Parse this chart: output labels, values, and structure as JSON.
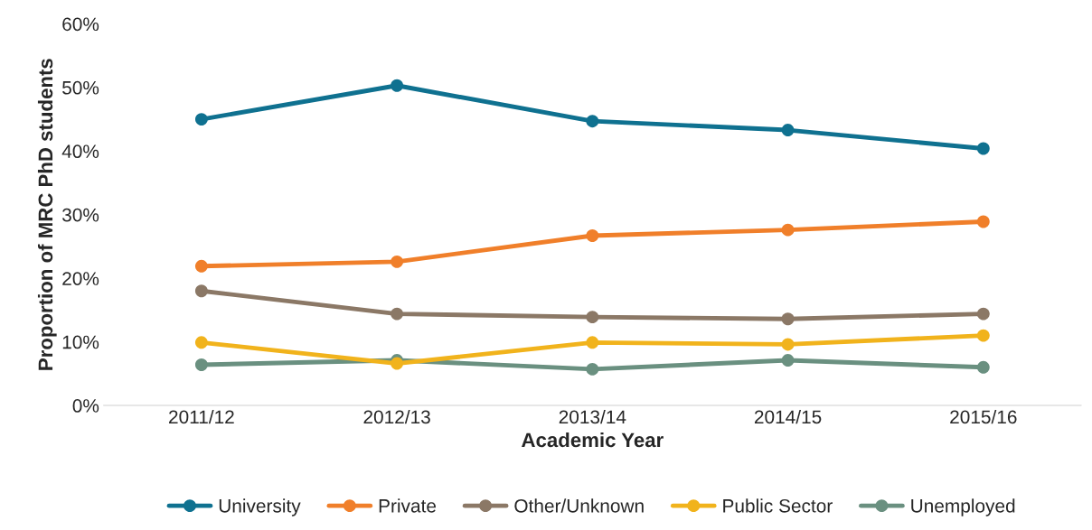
{
  "chart_data": {
    "type": "line",
    "xlabel": "Academic Year",
    "ylabel": "Proportion of MRC PhD students",
    "categories": [
      "2011/12",
      "2012/13",
      "2013/14",
      "2014/15",
      "2015/16"
    ],
    "series": [
      {
        "name": "University",
        "color": "#0f7190",
        "values": [
          45.0,
          50.3,
          44.7,
          43.3,
          40.4
        ]
      },
      {
        "name": "Private",
        "color": "#f07f2a",
        "values": [
          21.9,
          22.6,
          26.7,
          27.6,
          28.9
        ]
      },
      {
        "name": "Other/Unknown",
        "color": "#8b7866",
        "values": [
          18.0,
          14.4,
          13.9,
          13.6,
          14.4
        ]
      },
      {
        "name": "Public Sector",
        "color": "#f1b31c",
        "values": [
          9.9,
          6.6,
          9.9,
          9.6,
          11.0
        ]
      },
      {
        "name": "Unemployed",
        "color": "#6a9080",
        "values": [
          6.4,
          7.1,
          5.7,
          7.1,
          6.0
        ]
      }
    ],
    "ylim": [
      0,
      60
    ],
    "yticks": [
      {
        "value": 0,
        "label": "0%"
      },
      {
        "value": 10,
        "label": "10%"
      },
      {
        "value": 20,
        "label": "20%"
      },
      {
        "value": 30,
        "label": "30%"
      },
      {
        "value": 40,
        "label": "40%"
      },
      {
        "value": 50,
        "label": "50%"
      },
      {
        "value": 60,
        "label": "60%"
      }
    ],
    "grid": false,
    "legend": "bottom",
    "marker": "circle",
    "line_style": "solid"
  }
}
